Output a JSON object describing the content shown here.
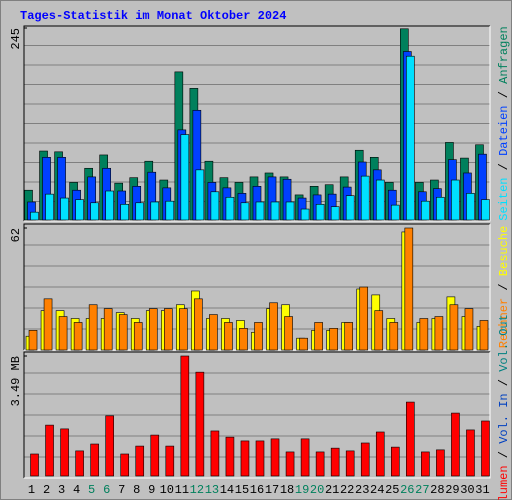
{
  "legend_separator": " / ",
  "chart_data": [
    {
      "type": "bar",
      "title": "Tages-Statistik im Monat Oktober 2024",
      "ylim": [
        0,
        245
      ],
      "yticks": [
        245
      ],
      "series": [
        {
          "name": "Anfragen",
          "color": "#00805c",
          "values": [
            38,
            88,
            87,
            48,
            66,
            83,
            47,
            54,
            75,
            51,
            189,
            168,
            75,
            54,
            48,
            55,
            60,
            55,
            32,
            43,
            45,
            55,
            89,
            80,
            48,
            244,
            48,
            51,
            99,
            79,
            96
          ]
        },
        {
          "name": "Dateien",
          "color": "#0040ff",
          "values": [
            23,
            80,
            80,
            38,
            55,
            66,
            37,
            43,
            61,
            41,
            115,
            140,
            48,
            41,
            34,
            43,
            55,
            52,
            28,
            32,
            33,
            42,
            74,
            64,
            38,
            215,
            36,
            40,
            77,
            60,
            84
          ]
        },
        {
          "name": "Seiten",
          "color": "#00e0ff",
          "values": [
            10,
            33,
            28,
            26,
            22,
            37,
            20,
            22,
            23,
            24,
            109,
            64,
            36,
            29,
            22,
            23,
            23,
            23,
            14,
            20,
            17,
            31,
            56,
            51,
            19,
            209,
            24,
            29,
            51,
            34,
            26
          ]
        }
      ]
    },
    {
      "type": "bar",
      "ylim": [
        0,
        62
      ],
      "yticks": [
        62
      ],
      "series": [
        {
          "name": "Besuche",
          "color": "#ffff00",
          "values": [
            7,
            20,
            20,
            16,
            16,
            16,
            19,
            16,
            20,
            20,
            23,
            30,
            16,
            16,
            15,
            9,
            21,
            23,
            6,
            10,
            10,
            14,
            31,
            28,
            16,
            60,
            14,
            16,
            27,
            17,
            12
          ]
        },
        {
          "name": "Rechner",
          "color": "#ff8000",
          "values": [
            10,
            26,
            17,
            14,
            23,
            21,
            18,
            14,
            21,
            21,
            21,
            26,
            18,
            14,
            11,
            14,
            24,
            17,
            6,
            14,
            11,
            14,
            32,
            20,
            14,
            62,
            16,
            17,
            23,
            21,
            15
          ]
        }
      ]
    },
    {
      "type": "bar",
      "ylim": [
        0,
        3.49
      ],
      "yticks": [
        {
          "value": 3.49,
          "label": "3.49 MB"
        }
      ],
      "categories": [
        "1",
        "2",
        "3",
        "4",
        "5",
        "6",
        "7",
        "8",
        "9",
        "10",
        "11",
        "12",
        "13",
        "14",
        "15",
        "16",
        "17",
        "18",
        "19",
        "20",
        "21",
        "22",
        "23",
        "24",
        "25",
        "26",
        "27",
        "28",
        "29",
        "30",
        "31"
      ],
      "category_label_colors": [
        "#000000",
        "#000000",
        "#000000",
        "#000000",
        "#00805c",
        "#00805c",
        "#000000",
        "#000000",
        "#000000",
        "#000000",
        "#000000",
        "#00805c",
        "#00805c",
        "#000000",
        "#000000",
        "#000000",
        "#000000",
        "#000000",
        "#00805c",
        "#00805c",
        "#000000",
        "#000000",
        "#000000",
        "#000000",
        "#000000",
        "#00805c",
        "#00805c",
        "#000000",
        "#000000",
        "#000000",
        "#000000"
      ],
      "series": [
        {
          "name": "Vol. Out",
          "color": "#008080",
          "values": [
            0,
            0,
            0,
            0,
            0,
            0,
            0,
            0,
            0,
            0,
            0,
            0,
            0,
            0,
            0,
            0,
            0,
            0,
            0,
            0,
            0,
            0,
            0,
            0,
            0,
            0,
            0,
            0,
            0,
            0,
            0
          ]
        },
        {
          "name": "Vol. In",
          "color": "#0040c0",
          "values": [
            0,
            0,
            0,
            0,
            0,
            0,
            0,
            0,
            0,
            0,
            0,
            0,
            0,
            0,
            0,
            0,
            0,
            0,
            0,
            0,
            0,
            0,
            0,
            0,
            0,
            0,
            0,
            0,
            0,
            0,
            0
          ]
        },
        {
          "name": "Volumen",
          "color": "#ff0000",
          "values": [
            0.64,
            1.48,
            1.37,
            0.73,
            0.93,
            1.75,
            0.64,
            0.87,
            1.19,
            0.87,
            3.49,
            3.02,
            1.31,
            1.13,
            1.02,
            1.02,
            1.08,
            0.7,
            1.08,
            0.7,
            0.81,
            0.73,
            0.96,
            1.28,
            0.84,
            2.15,
            0.7,
            0.76,
            1.83,
            1.34,
            1.6
          ]
        }
      ]
    }
  ]
}
